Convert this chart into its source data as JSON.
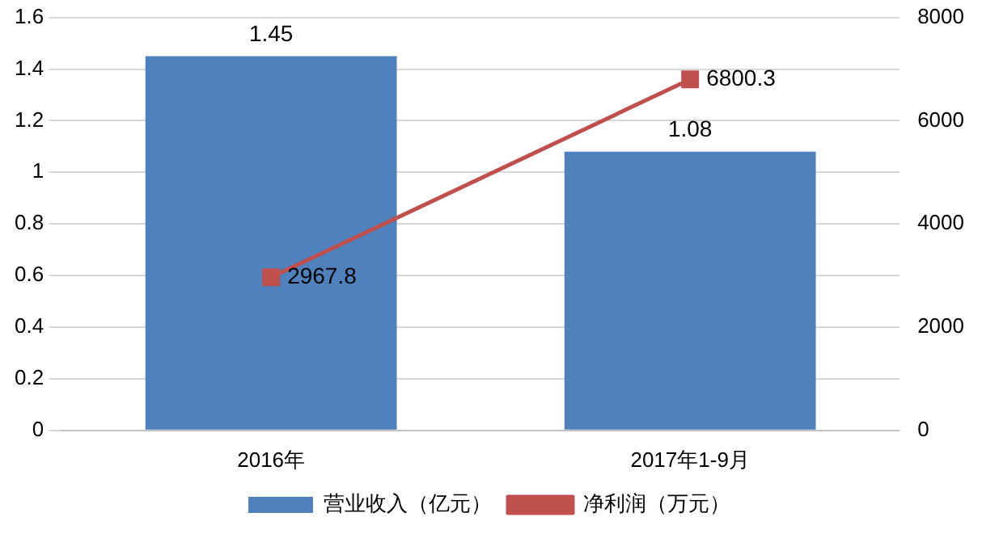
{
  "chart_data": {
    "type": "bar",
    "categories": [
      "2016年",
      "2017年1-9月"
    ],
    "series": [
      {
        "name": "营业收入（亿元）",
        "color": "#4f81bd",
        "values": [
          1.45,
          1.08
        ]
      },
      {
        "name": "净利润（万元）",
        "type": "line",
        "axis": "y2",
        "color": "#c0504d",
        "values": [
          2967.8,
          6800.3
        ]
      }
    ],
    "ylim": [
      0,
      1.6
    ],
    "yticks": [
      0,
      0.2,
      0.4,
      0.6,
      0.8,
      1,
      1.2,
      1.4,
      1.6
    ],
    "y2lim": [
      0,
      8000
    ],
    "y2ticks": [
      0,
      2000,
      4000,
      6000,
      8000
    ],
    "grid": "y",
    "legend": "bottom",
    "marker": "square",
    "data_labels": true
  }
}
